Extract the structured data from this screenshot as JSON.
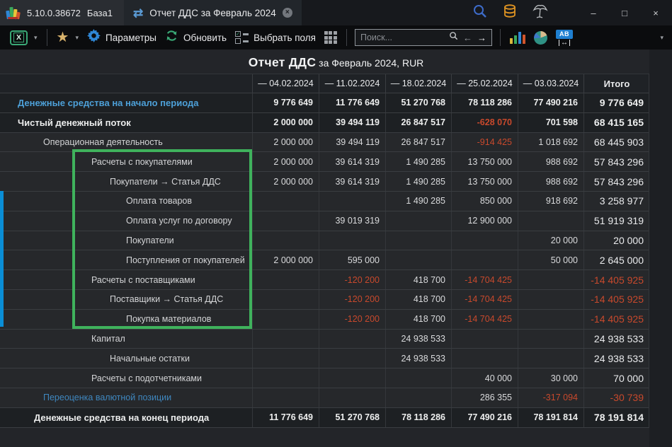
{
  "titlebar": {
    "version": "5.10.0.38672",
    "database_name": "База1",
    "tab_title": "Отчет ДДС за Февраль 2024"
  },
  "toolbar": {
    "params_label": "Параметры",
    "refresh_label": "Обновить",
    "select_fields_label": "Выбрать поля",
    "search_placeholder": "Поиск..."
  },
  "report": {
    "title": "Отчет ДДС",
    "subtitle": " за Февраль 2024, RUR"
  },
  "table": {
    "columns": [
      "— 04.02.2024",
      "— 11.02.2024",
      "— 18.02.2024",
      "— 25.02.2024",
      "— 03.03.2024",
      "Итого"
    ],
    "rows": [
      {
        "label": "Денежные средства на начало периода",
        "level": 0,
        "style": "totalBlue",
        "values": [
          "9 776 649",
          "11 776 649",
          "51 270 768",
          "78 118 286",
          "77 490 216",
          "9 776 649"
        ]
      },
      {
        "label": "Чистый денежный поток",
        "level": 0,
        "style": "total",
        "values": [
          "2 000 000",
          "39 494 119",
          "26 847 517",
          "-628 070",
          "701 598",
          "68 415 165"
        ]
      },
      {
        "label": "Операционная деятельность",
        "level": 1,
        "style": "normal",
        "values": [
          "2 000 000",
          "39 494 119",
          "26 847 517",
          "-914 425",
          "1 018 692",
          "68 445 903"
        ]
      },
      {
        "label": "Расчеты с покупателями",
        "level": 2,
        "style": "normal",
        "values": [
          "2 000 000",
          "39 614 319",
          "1 490 285",
          "13 750 000",
          "988 692",
          "57 843 296"
        ]
      },
      {
        "label": "Покупатели → Статья ДДС",
        "level": 3,
        "style": "normal",
        "values": [
          "2 000 000",
          "39 614 319",
          "1 490 285",
          "13 750 000",
          "988 692",
          "57 843 296"
        ]
      },
      {
        "label": "Оплата товаров",
        "level": 4,
        "style": "normal",
        "values": [
          "",
          "",
          "1 490 285",
          "850 000",
          "918 692",
          "3 258 977"
        ]
      },
      {
        "label": "Оплата услуг по договору",
        "level": 4,
        "style": "normal",
        "values": [
          "",
          "39 019 319",
          "",
          "12 900 000",
          "",
          "51 919 319"
        ]
      },
      {
        "label": "Покупатели",
        "level": 4,
        "style": "normal",
        "values": [
          "",
          "",
          "",
          "",
          "20 000",
          "20 000"
        ]
      },
      {
        "label": "Поступления от покупателей",
        "level": 4,
        "style": "normal",
        "values": [
          "2 000 000",
          "595 000",
          "",
          "",
          "50 000",
          "2 645 000"
        ]
      },
      {
        "label": "Расчеты с поставщиками",
        "level": 2,
        "style": "normal",
        "values": [
          "",
          "-120 200",
          "418 700",
          "-14 704 425",
          "",
          "-14 405 925"
        ]
      },
      {
        "label": "Поставщики → Статья ДДС",
        "level": 3,
        "style": "normal",
        "values": [
          "",
          "-120 200",
          "418 700",
          "-14 704 425",
          "",
          "-14 405 925"
        ]
      },
      {
        "label": "Покупка материалов",
        "level": 4,
        "style": "normal",
        "values": [
          "",
          "-120 200",
          "418 700",
          "-14 704 425",
          "",
          "-14 405 925"
        ]
      },
      {
        "label": "Капитал",
        "level": 2,
        "style": "normal",
        "values": [
          "",
          "",
          "24 938 533",
          "",
          "",
          "24 938 533"
        ]
      },
      {
        "label": "Начальные остатки",
        "level": 3,
        "style": "normal",
        "values": [
          "",
          "",
          "24 938 533",
          "",
          "",
          "24 938 533"
        ]
      },
      {
        "label": "Расчеты с подотчетниками",
        "level": 2,
        "style": "normal",
        "values": [
          "",
          "",
          "",
          "40 000",
          "30 000",
          "70 000"
        ]
      },
      {
        "label": "Переоценка валютной позиции",
        "level": 1,
        "style": "blue",
        "values": [
          "",
          "",
          "",
          "286 355",
          "-317 094",
          "-30 739"
        ]
      },
      {
        "label": "Денежные средства на конец периода",
        "level": 0,
        "style": "total",
        "values": [
          "11 776 649",
          "51 270 768",
          "78 118 286",
          "77 490 216",
          "78 191 814",
          "78 191 814"
        ]
      }
    ]
  },
  "icon_glyphs": {
    "sync": "⇄",
    "tab_close": "×",
    "minimize": "–",
    "maximize": "□",
    "close": "×",
    "star": "★",
    "caret": "▾",
    "excel_x": "X",
    "check": "✓",
    "search_back": "←",
    "search_forward": "→",
    "ab": "AB",
    "width_arrows": "↔"
  },
  "colors": {
    "accent_blue": "#4da0d8",
    "muted_blue": "#3f87bf",
    "negative_red": "#c8492c",
    "highlight_green": "#3fb25c",
    "selection_cyan": "#0a8ed6"
  }
}
